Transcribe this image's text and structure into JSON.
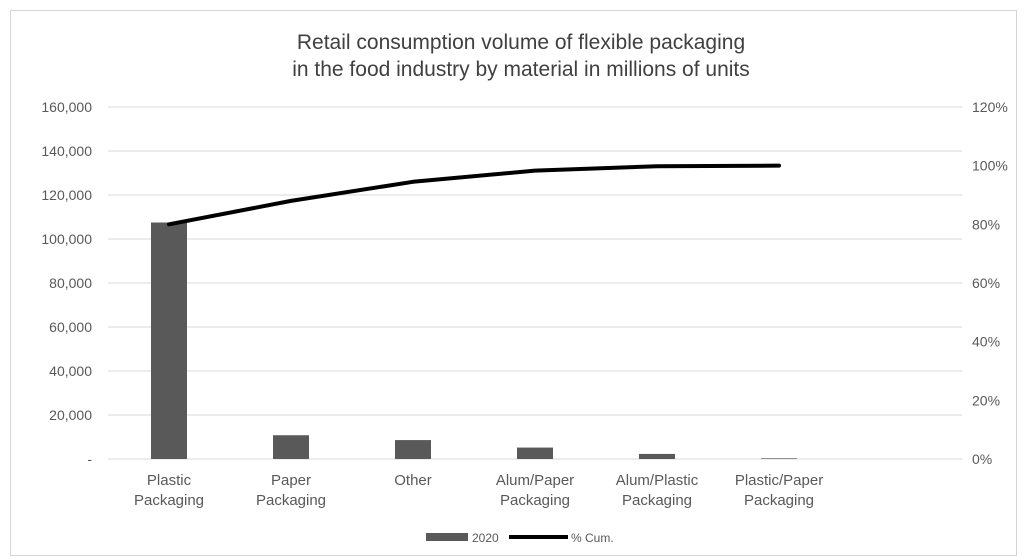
{
  "chart_data": {
    "type": "bar",
    "title_lines": [
      "Retail consumption volume of flexible packaging",
      "in the food industry by material in millions of units"
    ],
    "categories": [
      [
        "Plastic",
        "Packaging"
      ],
      [
        "Paper",
        "Packaging"
      ],
      [
        "Other"
      ],
      [
        "Alum/Paper",
        "Packaging"
      ],
      [
        "Alum/Plastic",
        "Packaging"
      ],
      [
        "Plastic/Paper",
        "Packaging"
      ]
    ],
    "series": [
      {
        "name": "2020",
        "kind": "bar",
        "axis": "left",
        "color": "#595959",
        "values": [
          107500,
          10800,
          8600,
          5200,
          2300,
          300
        ]
      },
      {
        "name": "% Cum.",
        "kind": "line",
        "axis": "right",
        "color": "#000000",
        "values": [
          80,
          88,
          94.5,
          98.3,
          99.8,
          100
        ]
      }
    ],
    "y_left": {
      "min": 0,
      "max": 160000,
      "step": 20000,
      "tick_labels": [
        "-",
        "20,000",
        "40,000",
        "60,000",
        "80,000",
        "100,000",
        "120,000",
        "140,000",
        "160,000"
      ]
    },
    "y_right": {
      "min": 0,
      "max": 120,
      "step": 20,
      "tick_labels": [
        "0%",
        "20%",
        "40%",
        "60%",
        "80%",
        "100%",
        "120%"
      ]
    },
    "grid": true,
    "legend_position": "bottom",
    "gridline_color": "#d9d9d9"
  }
}
